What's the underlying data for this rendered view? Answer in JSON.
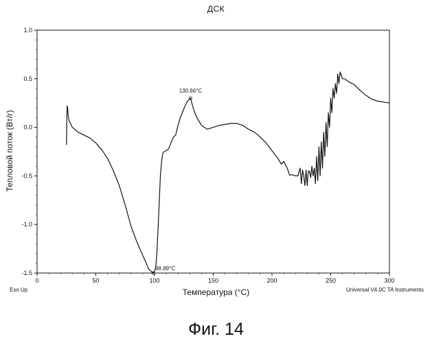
{
  "chart_data": {
    "type": "line",
    "title": "ДСК",
    "xlabel": "Температура  (°C)",
    "ylabel": "Тепловой поток (Вт/г)",
    "xlim": [
      0,
      300
    ],
    "ylim": [
      -1.5,
      1.0
    ],
    "x_ticks": [
      "0",
      "50",
      "100",
      "150",
      "200",
      "250",
      "300"
    ],
    "y_ticks": [
      "1.0",
      "0.5",
      "0.0",
      "-0.5",
      "-1.0",
      "-1.5"
    ],
    "grid": false,
    "series": [
      {
        "x": [
          25.0,
          25.3,
          25.6,
          26.0,
          26.5,
          27.0,
          27.5,
          28.0,
          30.0,
          35.0,
          40.0,
          45.0,
          50.0,
          55.0,
          60.0,
          65.0,
          70.0,
          75.0,
          80.0,
          85.0,
          90.0,
          93.0,
          95.0,
          97.0,
          98.89,
          100.0,
          101.0,
          102.0,
          103.0,
          104.0,
          105.0,
          106.0,
          107.0,
          108.0,
          110.0,
          112.0,
          114.0,
          116.0,
          118.0,
          120.0,
          122.0,
          124.0,
          126.0,
          128.0,
          130.66,
          132.0,
          134.0,
          136.0,
          138.0,
          140.0,
          145.0,
          150.0,
          155.0,
          160.0,
          165.0,
          170.0,
          175.0,
          180.0,
          185.0,
          190.0,
          195.0,
          200.0,
          205.0,
          208.0,
          210.0,
          213.0,
          215.0,
          218.0,
          220.0,
          222.0,
          224.0,
          225.0,
          226.0,
          227.0,
          228.0,
          229.0,
          230.0,
          231.0,
          232.0,
          233.0,
          234.0,
          235.0,
          236.0,
          237.0,
          238.0,
          239.0,
          240.0,
          241.0,
          242.0,
          243.0,
          244.0,
          245.0,
          246.0,
          247.0,
          248.0,
          249.0,
          250.0,
          251.0,
          252.0,
          253.0,
          254.0,
          255.0,
          256.0,
          257.0,
          258.0,
          260.0,
          262.0,
          265.0,
          270.0,
          275.0,
          280.0,
          285.0,
          290.0,
          295.0,
          300.0
        ],
        "y": [
          -0.18,
          0.08,
          0.22,
          0.2,
          0.12,
          0.08,
          0.06,
          0.05,
          0.0,
          -0.05,
          -0.08,
          -0.11,
          -0.16,
          -0.23,
          -0.32,
          -0.45,
          -0.6,
          -0.8,
          -1.02,
          -1.18,
          -1.32,
          -1.4,
          -1.46,
          -1.48,
          -1.5,
          -1.48,
          -1.44,
          -1.3,
          -1.05,
          -0.78,
          -0.5,
          -0.35,
          -0.27,
          -0.25,
          -0.24,
          -0.22,
          -0.16,
          -0.1,
          -0.08,
          0.02,
          0.1,
          0.16,
          0.22,
          0.27,
          0.3,
          0.24,
          0.16,
          0.1,
          0.06,
          0.02,
          -0.02,
          0.0,
          0.02,
          0.03,
          0.04,
          0.04,
          0.02,
          -0.02,
          -0.05,
          -0.1,
          -0.16,
          -0.24,
          -0.32,
          -0.38,
          -0.35,
          -0.42,
          -0.49,
          -0.49,
          -0.5,
          -0.5,
          -0.42,
          -0.58,
          -0.44,
          -0.5,
          -0.6,
          -0.44,
          -0.6,
          -0.45,
          -0.45,
          -0.52,
          -0.4,
          -0.5,
          -0.42,
          -0.58,
          -0.3,
          -0.55,
          -0.2,
          -0.5,
          -0.15,
          -0.42,
          -0.05,
          -0.3,
          0.05,
          -0.2,
          0.15,
          0.0,
          0.3,
          0.15,
          0.4,
          0.3,
          0.45,
          0.35,
          0.55,
          0.45,
          0.57,
          0.5,
          0.5,
          0.47,
          0.44,
          0.38,
          0.33,
          0.29,
          0.27,
          0.26,
          0.25
        ]
      }
    ],
    "annotations": [
      {
        "text": "130.66°C",
        "x": 130.66,
        "y": 0.3
      },
      {
        "text": "98.89°C",
        "x": 98.89,
        "y": -1.5
      }
    ]
  },
  "footer": {
    "left": "Exo Up",
    "right": "Universal V4.0C TA Instruments"
  },
  "caption": "Фиг. 14"
}
